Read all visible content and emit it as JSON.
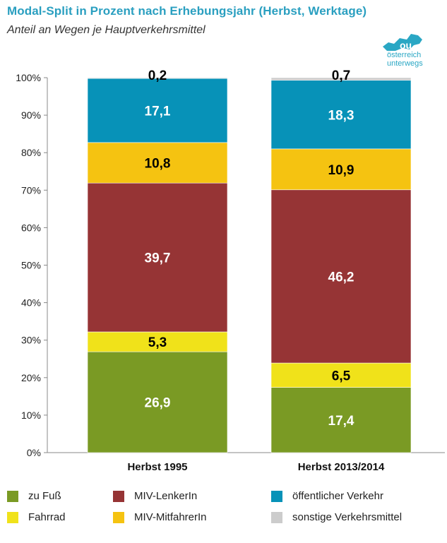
{
  "header": {
    "title": "Modal-Split in Prozent nach Erhebungsjahr (Herbst, Werktage)",
    "subtitle": "Anteil an Wegen je Hauptverkehrsmittel"
  },
  "logo": {
    "line1": "österreich",
    "line2": "unterwegs",
    "color": "#2aa7c4"
  },
  "chart_data": {
    "type": "bar",
    "stacked": true,
    "categories": [
      "Herbst 1995",
      "Herbst 2013/2014"
    ],
    "ylim": [
      0,
      100
    ],
    "yticks": [
      "0%",
      "10%",
      "20%",
      "30%",
      "40%",
      "50%",
      "60%",
      "70%",
      "80%",
      "90%",
      "100%"
    ],
    "series": [
      {
        "name": "zu Fuß",
        "values": [
          26.9,
          17.4
        ],
        "labels": [
          "26,9",
          "17,4"
        ],
        "color": "#7a9a24",
        "label_color": "#ffffff"
      },
      {
        "name": "Fahrrad",
        "values": [
          5.3,
          6.5
        ],
        "labels": [
          "5,3",
          "6,5"
        ],
        "color": "#f0e21a",
        "label_color": "#000000"
      },
      {
        "name": "MIV-LenkerIn",
        "values": [
          39.7,
          46.2
        ],
        "labels": [
          "39,7",
          "46,2"
        ],
        "color": "#963435",
        "label_color": "#ffffff"
      },
      {
        "name": "MIV-MitfahrerIn",
        "values": [
          10.8,
          10.9
        ],
        "labels": [
          "10,8",
          "10,9"
        ],
        "color": "#f5c311",
        "label_color": "#000000"
      },
      {
        "name": "öffentlicher Verkehr",
        "values": [
          17.1,
          18.3
        ],
        "labels": [
          "17,1",
          "18,3"
        ],
        "color": "#0792b8",
        "label_color": "#ffffff"
      },
      {
        "name": "sonstige Verkehrsmittel",
        "values": [
          0.2,
          0.7
        ],
        "labels": [
          "0,2",
          "0,7"
        ],
        "color": "#cccccc",
        "label_color": "#000000"
      }
    ],
    "legend_position": "bottom",
    "grid": false
  }
}
